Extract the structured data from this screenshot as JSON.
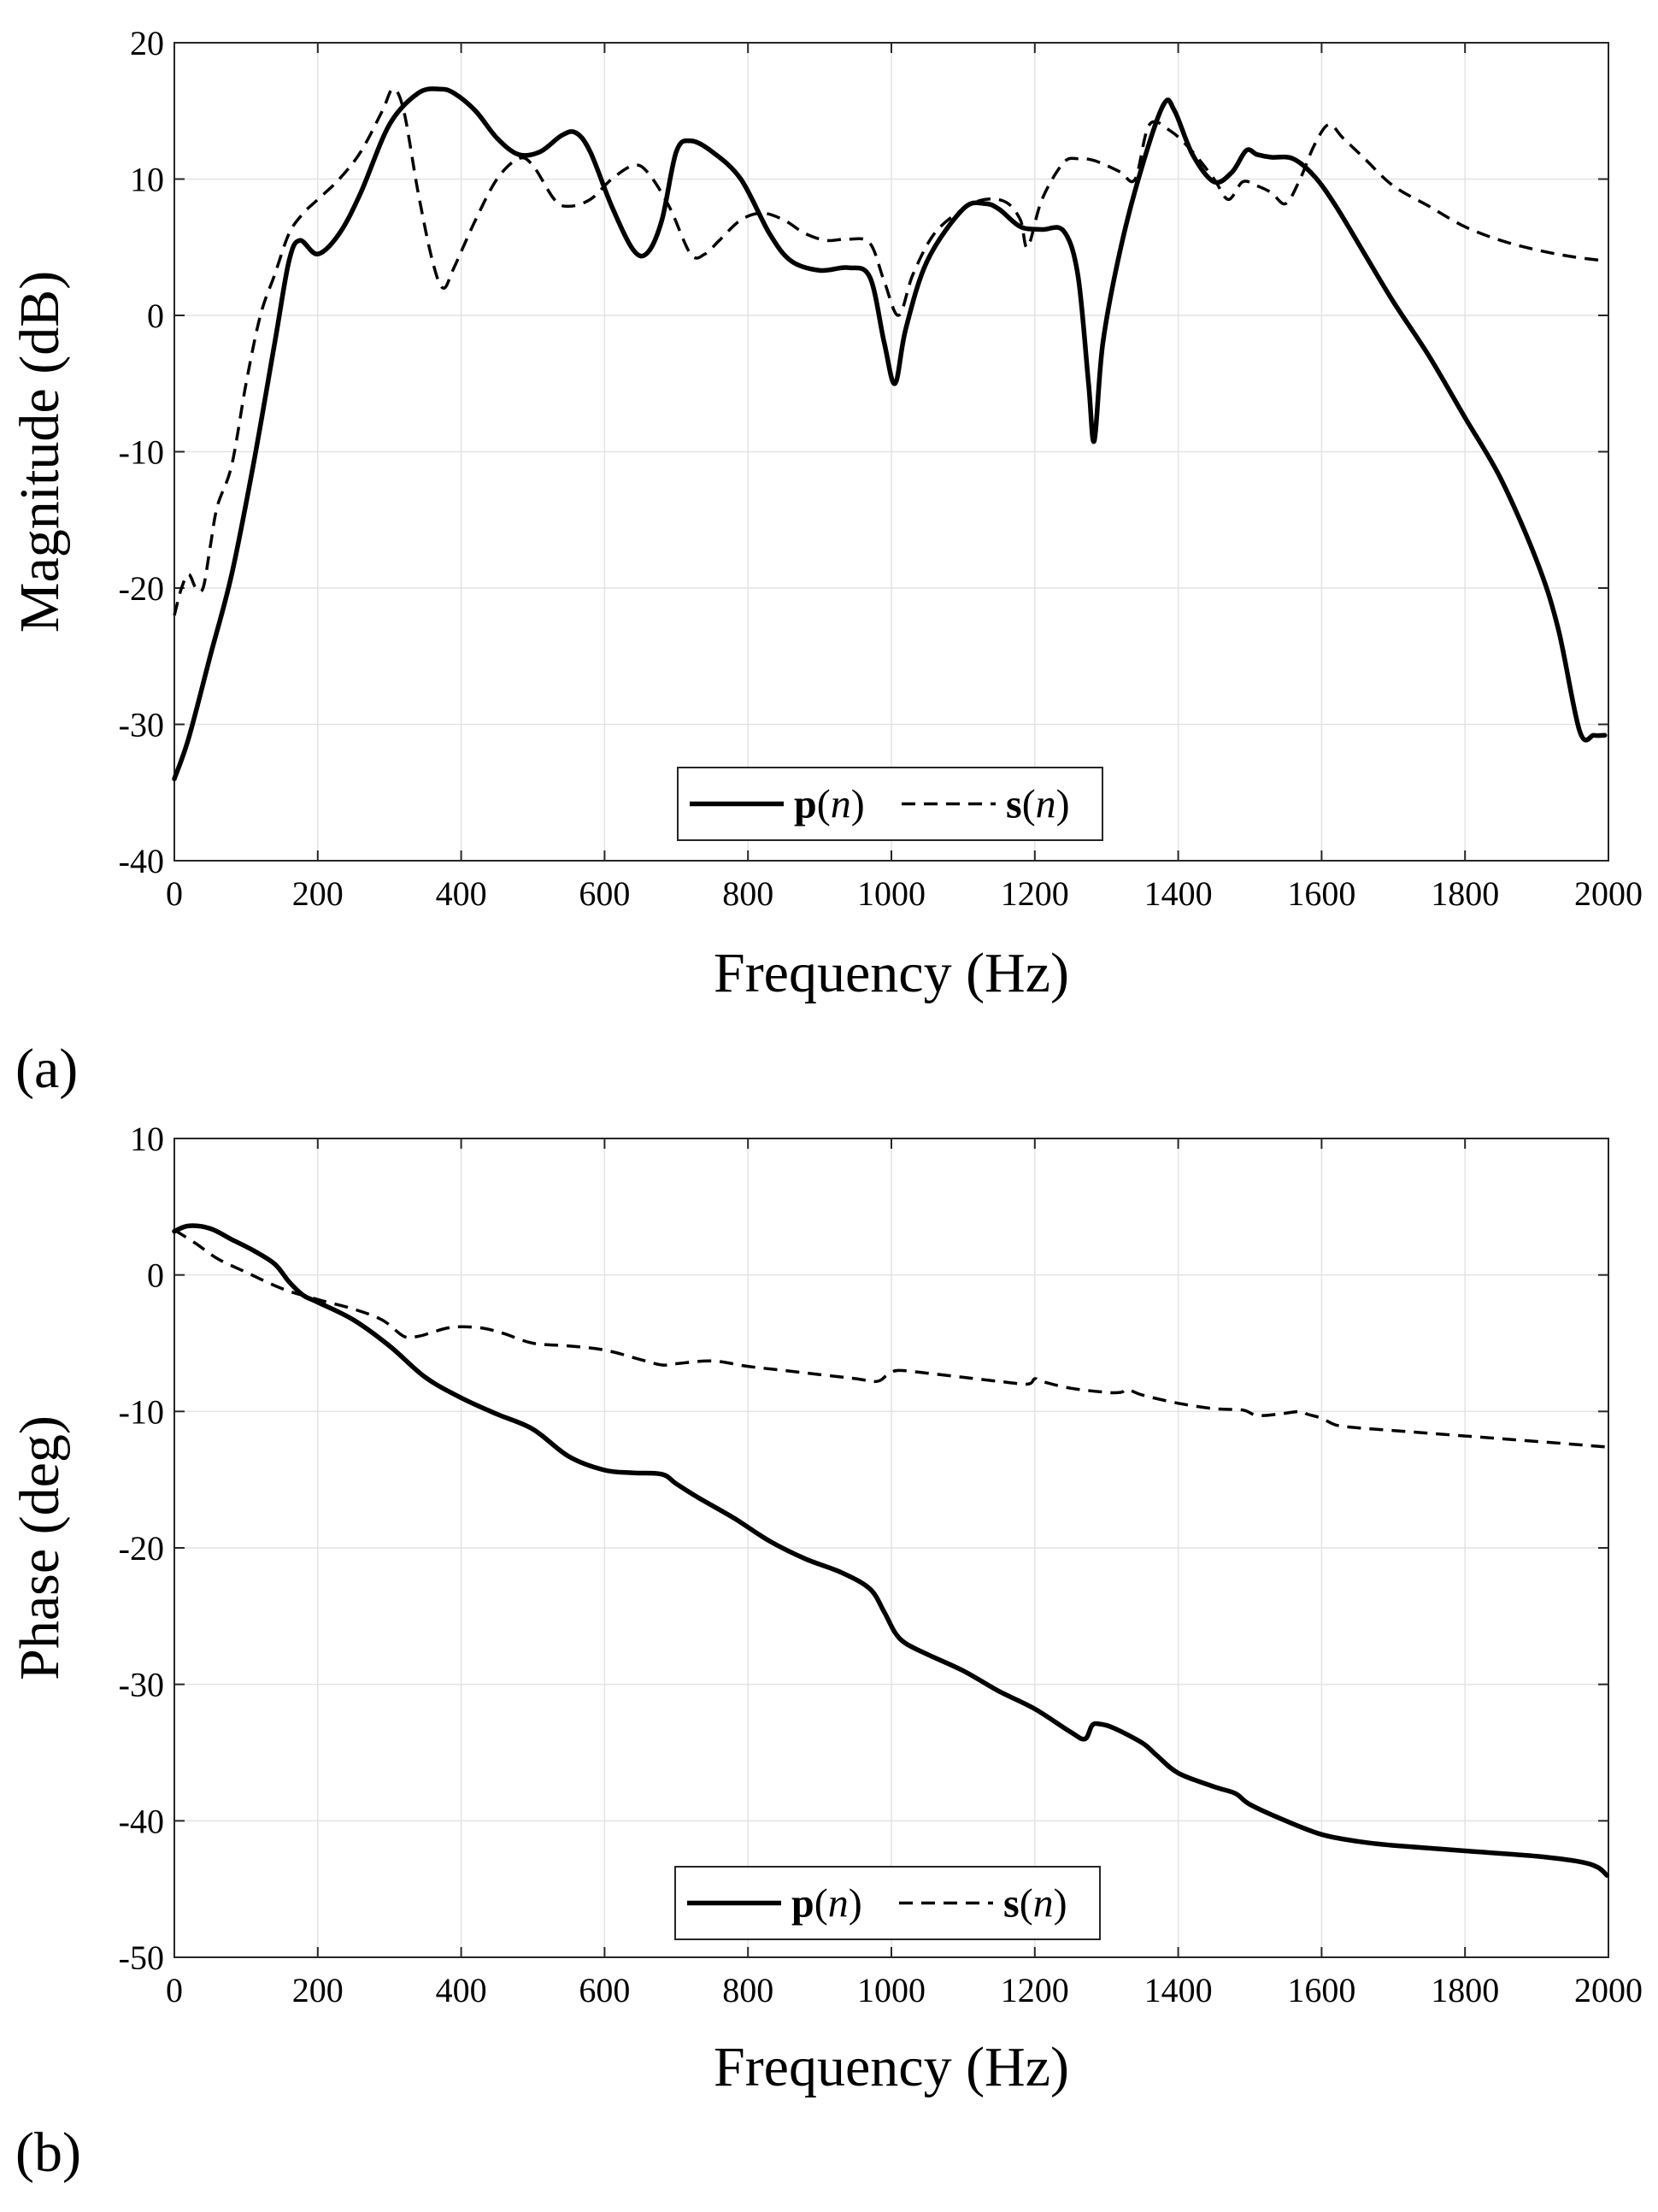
{
  "figure": {
    "panel_a_label": "(a)",
    "panel_b_label": "(b)"
  },
  "chart_data": [
    {
      "type": "line",
      "id": "magnitude",
      "xlabel": "Frequency (Hz)",
      "ylabel": "Magnitude (dB)",
      "xlim": [
        0,
        2000
      ],
      "ylim": [
        -40,
        20
      ],
      "xticks": [
        0,
        200,
        400,
        600,
        800,
        1000,
        1200,
        1400,
        1600,
        1800,
        2000
      ],
      "yticks": [
        -40,
        -30,
        -20,
        -10,
        0,
        10,
        20
      ],
      "grid": true,
      "legend": {
        "position": "bottom-center",
        "entries": [
          {
            "bold": "p",
            "italic": "n",
            "style": "solid"
          },
          {
            "bold": "s",
            "italic": "n",
            "style": "dashed"
          }
        ]
      },
      "series": [
        {
          "name": "p(n)",
          "style": "solid",
          "x": [
            0,
            20,
            50,
            80,
            110,
            140,
            160,
            175,
            200,
            230,
            260,
            300,
            340,
            370,
            390,
            420,
            450,
            480,
            510,
            540,
            560,
            580,
            610,
            640,
            660,
            680,
            700,
            720,
            750,
            790,
            830,
            860,
            900,
            940,
            970,
            990,
            1005,
            1020,
            1050,
            1100,
            1130,
            1150,
            1180,
            1210,
            1240,
            1260,
            1275,
            1283,
            1295,
            1320,
            1350,
            1380,
            1395,
            1420,
            1450,
            1475,
            1495,
            1510,
            1530,
            1560,
            1590,
            1620,
            1660,
            1700,
            1750,
            1800,
            1850,
            1900,
            1930,
            1960,
            1980,
            1995
          ],
          "y": [
            -34,
            -31,
            -25,
            -19,
            -11,
            -2,
            4,
            5.5,
            4.5,
            6,
            9,
            14,
            16.3,
            16.6,
            16.3,
            15,
            13,
            11.8,
            12,
            13.2,
            13.4,
            12,
            8,
            4.8,
            4.6,
            7,
            12,
            12.8,
            12,
            10,
            6,
            4,
            3.3,
            3.5,
            2.8,
            -2,
            -5,
            -1,
            4,
            7.8,
            8.2,
            7.8,
            6.5,
            6.3,
            6.2,
            3,
            -5,
            -9.2,
            -2,
            5,
            11,
            15.5,
            15,
            11.8,
            9.8,
            10.5,
            12.1,
            11.8,
            11.6,
            11.5,
            10.2,
            8,
            4.5,
            1,
            -3,
            -7.5,
            -12,
            -18,
            -23,
            -30.5,
            -30.8,
            -30.8
          ]
        },
        {
          "name": "s(n)",
          "style": "dashed",
          "x": [
            0,
            10,
            20,
            30,
            40,
            50,
            60,
            80,
            100,
            120,
            140,
            160,
            180,
            200,
            230,
            260,
            290,
            305,
            320,
            340,
            360,
            375,
            390,
            420,
            450,
            480,
            500,
            530,
            550,
            580,
            610,
            640,
            660,
            690,
            720,
            740,
            760,
            790,
            820,
            850,
            880,
            910,
            940,
            970,
            990,
            1010,
            1030,
            1060,
            1100,
            1130,
            1160,
            1180,
            1190,
            1210,
            1240,
            1260,
            1280,
            1300,
            1320,
            1340,
            1360,
            1390,
            1420,
            1450,
            1470,
            1490,
            1510,
            1530,
            1550,
            1570,
            1590,
            1610,
            1630,
            1660,
            1700,
            1750,
            1800,
            1850,
            1900,
            1950,
            1995
          ],
          "y": [
            -22,
            -20,
            -19,
            -20,
            -20,
            -17,
            -14,
            -11,
            -5,
            0,
            3,
            6,
            7.5,
            8.5,
            10,
            12,
            15,
            16.6,
            15,
            9,
            4,
            2,
            3.5,
            7,
            10,
            11.5,
            11,
            8.5,
            8,
            8.5,
            10,
            11,
            10.5,
            8,
            4.5,
            4.5,
            5.5,
            7,
            7.5,
            7,
            6,
            5.5,
            5.6,
            5.3,
            2.5,
            0,
            3,
            6,
            7.8,
            8.5,
            8.3,
            7,
            5,
            8.5,
            11.2,
            11.5,
            11.4,
            11,
            10.5,
            10,
            14,
            13.5,
            12,
            10,
            8.5,
            9.8,
            9.5,
            9,
            8.2,
            10,
            12.5,
            14,
            13,
            11.5,
            9.5,
            8,
            6.5,
            5.5,
            4.8,
            4.3,
            4
          ]
        }
      ]
    },
    {
      "type": "line",
      "id": "phase",
      "xlabel": "Frequency (Hz)",
      "ylabel": "Phase (deg)",
      "xlim": [
        0,
        2000
      ],
      "ylim": [
        -50,
        10
      ],
      "xticks": [
        0,
        200,
        400,
        600,
        800,
        1000,
        1200,
        1400,
        1600,
        1800,
        2000
      ],
      "yticks": [
        -50,
        -40,
        -30,
        -20,
        -10,
        0,
        10
      ],
      "grid": true,
      "legend": {
        "position": "bottom-center",
        "entries": [
          {
            "bold": "p",
            "italic": "n",
            "style": "solid"
          },
          {
            "bold": "s",
            "italic": "n",
            "style": "dashed"
          }
        ]
      },
      "series": [
        {
          "name": "p(n)",
          "style": "solid",
          "x": [
            0,
            20,
            50,
            80,
            110,
            140,
            160,
            180,
            200,
            250,
            300,
            350,
            400,
            450,
            500,
            550,
            600,
            640,
            680,
            700,
            730,
            780,
            830,
            880,
            930,
            970,
            990,
            1005,
            1020,
            1050,
            1100,
            1150,
            1200,
            1250,
            1270,
            1280,
            1290,
            1310,
            1350,
            1370,
            1400,
            1450,
            1480,
            1500,
            1550,
            1600,
            1650,
            1700,
            1800,
            1900,
            1960,
            1985,
            1998
          ],
          "y": [
            3.2,
            3.6,
            3.4,
            2.6,
            1.8,
            0.8,
            -0.5,
            -1.5,
            -2,
            -3.3,
            -5.2,
            -7.5,
            -9,
            -10.2,
            -11.3,
            -13.3,
            -14.3,
            -14.5,
            -14.6,
            -15.3,
            -16.3,
            -17.8,
            -19.5,
            -20.8,
            -21.8,
            -23,
            -24.7,
            -26.2,
            -27,
            -27.8,
            -29,
            -30.5,
            -31.8,
            -33.5,
            -34,
            -33,
            -32.9,
            -33.2,
            -34.3,
            -35.2,
            -36.5,
            -37.5,
            -38,
            -38.8,
            -40,
            -41,
            -41.5,
            -41.8,
            -42.2,
            -42.6,
            -43,
            -43.4,
            -44
          ]
        },
        {
          "name": "s(n)",
          "style": "dashed",
          "x": [
            0,
            30,
            60,
            100,
            150,
            200,
            250,
            290,
            320,
            340,
            360,
            380,
            400,
            430,
            460,
            500,
            550,
            600,
            650,
            680,
            700,
            750,
            800,
            850,
            900,
            950,
            980,
            995,
            1010,
            1050,
            1100,
            1150,
            1190,
            1200,
            1210,
            1250,
            1300,
            1320,
            1330,
            1350,
            1400,
            1450,
            1490,
            1510,
            1540,
            1570,
            1580,
            1600,
            1620,
            1650,
            1700,
            1750,
            1800,
            1850,
            1900,
            1950,
            1995
          ],
          "y": [
            3.3,
            2.3,
            1.2,
            0.2,
            -1,
            -1.8,
            -2.5,
            -3.3,
            -4.5,
            -4.5,
            -4.2,
            -3.9,
            -3.8,
            -3.9,
            -4.3,
            -5,
            -5.2,
            -5.5,
            -6.2,
            -6.6,
            -6.5,
            -6.3,
            -6.7,
            -7,
            -7.3,
            -7.6,
            -7.8,
            -7.3,
            -7,
            -7.2,
            -7.5,
            -7.8,
            -8,
            -7.6,
            -7.8,
            -8.3,
            -8.6,
            -8.6,
            -8.4,
            -8.8,
            -9.4,
            -9.8,
            -9.9,
            -10.3,
            -10.2,
            -10,
            -10.2,
            -10.5,
            -11,
            -11.2,
            -11.4,
            -11.6,
            -11.8,
            -12,
            -12.2,
            -12.4,
            -12.6
          ]
        }
      ]
    }
  ]
}
